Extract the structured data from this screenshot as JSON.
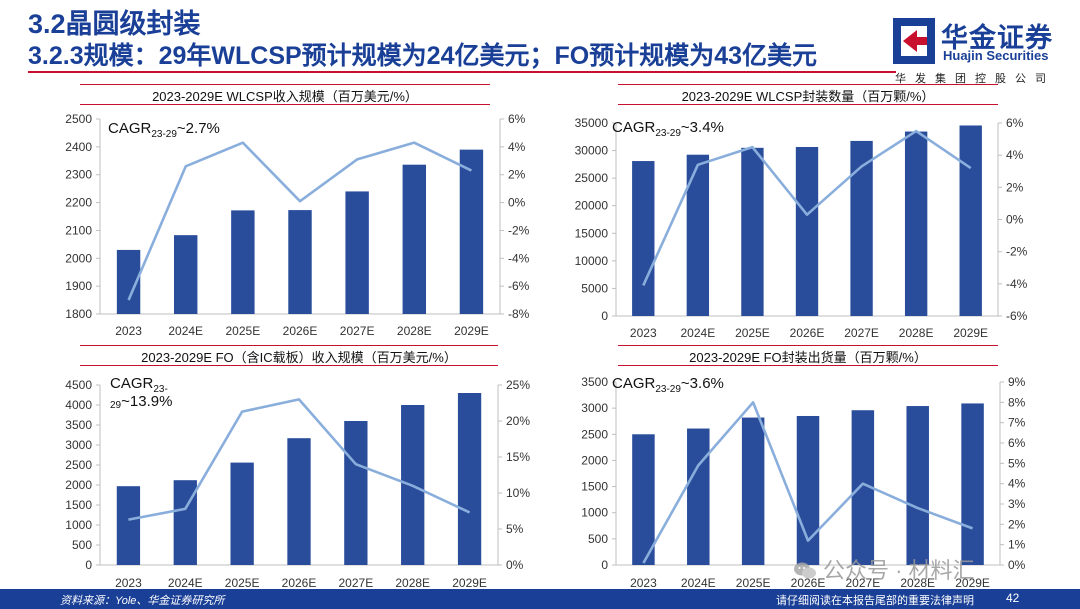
{
  "header": {
    "title": "3.2晶圆级封装",
    "subtitle": "3.2.3规模：29年WLCSP预计规模为24亿美元；FO预计规模为43亿美元"
  },
  "logo": {
    "name_cn": "华金证券",
    "name_en": "Huajin Securities",
    "group": "华发集团控股公司"
  },
  "footer": {
    "source": "资料来源：Yole、华金证券研究所",
    "disclaimer": "请仔细阅读在本报告尾部的重要法律声明",
    "page": "42"
  },
  "watermark": "公众号 · 材料汇",
  "colors": {
    "bar": "#2a4d9b",
    "line": "#8aaedc",
    "title_rule": "#c8102e",
    "brand": "#1a3f97"
  },
  "chart_data": [
    {
      "type": "bar",
      "title": "2023-2029E WLCSP收入规模（百万美元/%）",
      "cagr_main": "CAGR",
      "cagr_sub": "23-29",
      "cagr_value": "~2.7%",
      "categories": [
        "2023",
        "2024E",
        "2025E",
        "2026E",
        "2027E",
        "2028E",
        "2029E"
      ],
      "series": [
        {
          "axis": "left",
          "kind": "bar",
          "values": [
            2030,
            2083,
            2172,
            2173,
            2240,
            2336,
            2390
          ]
        },
        {
          "axis": "right",
          "kind": "line",
          "values": [
            -7.0,
            2.6,
            4.3,
            0.1,
            3.1,
            4.3,
            2.3
          ]
        }
      ],
      "ylim_left": [
        1800,
        2500
      ],
      "yticks_left": [
        1800,
        1900,
        2000,
        2100,
        2200,
        2300,
        2400,
        2500
      ],
      "ylim_right": [
        -8,
        6
      ],
      "yticks_right": [
        -8,
        -6,
        -4,
        -2,
        0,
        2,
        4,
        6
      ],
      "right_suffix": "%",
      "grid": false
    },
    {
      "type": "bar",
      "title": "2023-2029E WLCSP封装数量（百万颗/%）",
      "cagr_main": "CAGR",
      "cagr_sub": "23-29",
      "cagr_value": "~3.4%",
      "categories": [
        "2023",
        "2024E",
        "2025E",
        "2026E",
        "2027E",
        "2028E",
        "2029E"
      ],
      "series": [
        {
          "axis": "left",
          "kind": "bar",
          "values": [
            28100,
            29250,
            30500,
            30650,
            31750,
            33450,
            34550
          ]
        },
        {
          "axis": "right",
          "kind": "line",
          "values": [
            -4.1,
            3.4,
            4.5,
            0.3,
            3.3,
            5.5,
            3.2
          ]
        }
      ],
      "ylim_left": [
        0,
        35000
      ],
      "yticks_left": [
        0,
        5000,
        10000,
        15000,
        20000,
        25000,
        30000,
        35000
      ],
      "ylim_right": [
        -6,
        6
      ],
      "yticks_right": [
        -6,
        -4,
        -2,
        0,
        2,
        4,
        6
      ],
      "right_suffix": "%",
      "grid": false
    },
    {
      "type": "bar",
      "title": "2023-2029E FO（含IC载板）收入规模（百万美元/%）",
      "cagr_main": "CAGR",
      "cagr_sub": "23-29",
      "cagr_value": "~13.9%",
      "categories": [
        "2023",
        "2024E",
        "2025E",
        "2026E",
        "2027E",
        "2028E",
        "2029E"
      ],
      "series": [
        {
          "axis": "left",
          "kind": "bar",
          "values": [
            1970,
            2120,
            2560,
            3170,
            3600,
            4000,
            4300
          ]
        },
        {
          "axis": "right",
          "kind": "line",
          "values": [
            6.3,
            7.8,
            21.3,
            23.0,
            14.0,
            11.0,
            7.3
          ]
        }
      ],
      "ylim_left": [
        0,
        4500
      ],
      "yticks_left": [
        0,
        500,
        1000,
        1500,
        2000,
        2500,
        3000,
        3500,
        4000,
        4500
      ],
      "ylim_right": [
        0,
        25
      ],
      "yticks_right": [
        0,
        5,
        10,
        15,
        20,
        25
      ],
      "right_suffix": "%",
      "grid": false
    },
    {
      "type": "bar",
      "title": "2023-2029E FO封装出货量（百万颗/%）",
      "cagr_main": "CAGR",
      "cagr_sub": "23-29",
      "cagr_value": "~3.6%",
      "categories": [
        "2023",
        "2024E",
        "2025E",
        "2026E",
        "2027E",
        "2028E",
        "2029E"
      ],
      "series": [
        {
          "axis": "left",
          "kind": "bar",
          "values": [
            2500,
            2610,
            2820,
            2850,
            2960,
            3040,
            3090
          ]
        },
        {
          "axis": "right",
          "kind": "line",
          "values": [
            0.1,
            4.9,
            8.0,
            1.2,
            4.0,
            2.8,
            1.8
          ]
        }
      ],
      "ylim_left": [
        0,
        3500
      ],
      "yticks_left": [
        0,
        500,
        1000,
        1500,
        2000,
        2500,
        3000,
        3500
      ],
      "ylim_right": [
        0,
        9
      ],
      "yticks_right": [
        0,
        1,
        2,
        3,
        4,
        5,
        6,
        7,
        8,
        9
      ],
      "right_suffix": "%",
      "grid": false
    }
  ]
}
